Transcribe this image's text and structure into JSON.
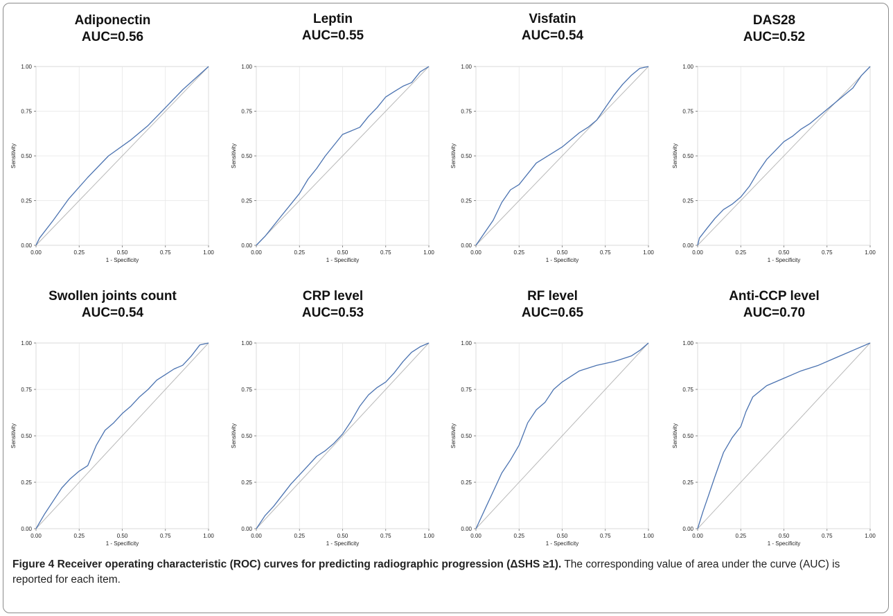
{
  "caption": {
    "label": "Figure 4",
    "title": "Receiver operating characteristic (ROC) curves for predicting radiographic progression (ΔSHS ≥1).",
    "text": "The corresponding value of area under the curve (AUC) is reported for each item."
  },
  "colors": {
    "curve": "#4a72b0",
    "diagonal": "#b8b8b8",
    "grid": "#e6e6e6",
    "frame": "#b0b0b0"
  },
  "chart_data": [
    {
      "type": "line",
      "title": "Adiponectin",
      "subtitle": "AUC=0.56",
      "xlabel": "1 - Specificity",
      "ylabel": "Sensitivity",
      "xlim": [
        0,
        1
      ],
      "ylim": [
        0,
        1
      ],
      "xticks": [
        "0.00",
        "0.25",
        "0.50",
        "0.75",
        "1.00"
      ],
      "yticks": [
        "0.00",
        "0.25",
        "0.50",
        "0.75",
        "1.00"
      ],
      "x": [
        0,
        0.02,
        0.1,
        0.19,
        0.3,
        0.42,
        0.55,
        0.65,
        0.75,
        0.85,
        1.0
      ],
      "y": [
        0,
        0.04,
        0.14,
        0.26,
        0.38,
        0.5,
        0.59,
        0.67,
        0.77,
        0.87,
        1.0
      ]
    },
    {
      "type": "line",
      "title": "Leptin",
      "subtitle": "AUC=0.55",
      "xlabel": "1 - Specificity",
      "ylabel": "Sensitivity",
      "xlim": [
        0,
        1
      ],
      "ylim": [
        0,
        1
      ],
      "xticks": [
        "0.00",
        "0.25",
        "0.50",
        "0.75",
        "1.00"
      ],
      "yticks": [
        "0.00",
        "0.25",
        "0.50",
        "0.75",
        "1.00"
      ],
      "x": [
        0,
        0.05,
        0.1,
        0.15,
        0.2,
        0.25,
        0.3,
        0.35,
        0.4,
        0.45,
        0.5,
        0.55,
        0.6,
        0.65,
        0.7,
        0.75,
        0.8,
        0.85,
        0.9,
        0.95,
        1.0
      ],
      "y": [
        0,
        0.05,
        0.11,
        0.17,
        0.23,
        0.29,
        0.37,
        0.43,
        0.5,
        0.56,
        0.62,
        0.64,
        0.66,
        0.72,
        0.77,
        0.83,
        0.86,
        0.89,
        0.91,
        0.97,
        1.0
      ]
    },
    {
      "type": "line",
      "title": "Visfatin",
      "subtitle": "AUC=0.54",
      "xlabel": "1 - Specificity",
      "ylabel": "Sensitivity",
      "xlim": [
        0,
        1
      ],
      "ylim": [
        0,
        1
      ],
      "xticks": [
        "0.00",
        "0.25",
        "0.50",
        "0.75",
        "1.00"
      ],
      "yticks": [
        "0.00",
        "0.25",
        "0.50",
        "0.75",
        "1.00"
      ],
      "x": [
        0,
        0.05,
        0.1,
        0.15,
        0.2,
        0.25,
        0.3,
        0.35,
        0.4,
        0.45,
        0.5,
        0.55,
        0.6,
        0.65,
        0.7,
        0.75,
        0.8,
        0.85,
        0.9,
        0.95,
        1.0
      ],
      "y": [
        0,
        0.07,
        0.14,
        0.24,
        0.31,
        0.34,
        0.4,
        0.46,
        0.49,
        0.52,
        0.55,
        0.59,
        0.63,
        0.66,
        0.7,
        0.77,
        0.84,
        0.9,
        0.95,
        0.99,
        1.0
      ]
    },
    {
      "type": "line",
      "title": "DAS28",
      "subtitle": "AUC=0.52",
      "xlabel": "1 - Specificity",
      "ylabel": "Sensitivity",
      "xlim": [
        0,
        1
      ],
      "ylim": [
        0,
        1
      ],
      "xticks": [
        "0.00",
        "0.25",
        "0.50",
        "0.75",
        "1.00"
      ],
      "yticks": [
        "0.00",
        "0.25",
        "0.50",
        "0.75",
        "1.00"
      ],
      "x": [
        0,
        0.01,
        0.05,
        0.1,
        0.15,
        0.2,
        0.25,
        0.3,
        0.35,
        0.4,
        0.45,
        0.5,
        0.55,
        0.6,
        0.65,
        0.7,
        0.75,
        0.8,
        0.85,
        0.9,
        0.95,
        1.0
      ],
      "y": [
        0,
        0.04,
        0.09,
        0.15,
        0.2,
        0.23,
        0.27,
        0.33,
        0.41,
        0.48,
        0.53,
        0.58,
        0.61,
        0.65,
        0.68,
        0.72,
        0.76,
        0.8,
        0.84,
        0.88,
        0.95,
        1.0
      ]
    },
    {
      "type": "line",
      "title": "Swollen joints count",
      "subtitle": "AUC=0.54",
      "xlabel": "1 - Specificity",
      "ylabel": "Sensitivity",
      "xlim": [
        0,
        1
      ],
      "ylim": [
        0,
        1
      ],
      "xticks": [
        "0.00",
        "0.25",
        "0.50",
        "0.75",
        "1.00"
      ],
      "yticks": [
        "0.00",
        "0.25",
        "0.50",
        "0.75",
        "1.00"
      ],
      "x": [
        0,
        0.05,
        0.1,
        0.15,
        0.2,
        0.25,
        0.3,
        0.35,
        0.4,
        0.45,
        0.5,
        0.55,
        0.6,
        0.65,
        0.7,
        0.75,
        0.8,
        0.85,
        0.9,
        0.95,
        1.0
      ],
      "y": [
        0,
        0.08,
        0.15,
        0.22,
        0.27,
        0.31,
        0.34,
        0.45,
        0.53,
        0.57,
        0.62,
        0.66,
        0.71,
        0.75,
        0.8,
        0.83,
        0.86,
        0.88,
        0.93,
        0.99,
        1.0
      ]
    },
    {
      "type": "line",
      "title": "CRP level",
      "subtitle": "AUC=0.53",
      "xlabel": "1 - Specificity",
      "ylabel": "Sensitivity",
      "xlim": [
        0,
        1
      ],
      "ylim": [
        0,
        1
      ],
      "xticks": [
        "0.00",
        "0.25",
        "0.50",
        "0.75",
        "1.00"
      ],
      "yticks": [
        "0.00",
        "0.25",
        "0.50",
        "0.75",
        "1.00"
      ],
      "x": [
        0,
        0.05,
        0.1,
        0.15,
        0.2,
        0.25,
        0.3,
        0.35,
        0.4,
        0.45,
        0.5,
        0.55,
        0.6,
        0.65,
        0.7,
        0.75,
        0.8,
        0.85,
        0.9,
        0.95,
        1.0
      ],
      "y": [
        0,
        0.07,
        0.12,
        0.18,
        0.24,
        0.29,
        0.34,
        0.39,
        0.42,
        0.46,
        0.51,
        0.58,
        0.66,
        0.72,
        0.76,
        0.79,
        0.84,
        0.9,
        0.95,
        0.98,
        1.0
      ]
    },
    {
      "type": "line",
      "title": "RF level",
      "subtitle": "AUC=0.65",
      "xlabel": "1 - Specificity",
      "ylabel": "Sensitivity",
      "xlim": [
        0,
        1
      ],
      "ylim": [
        0,
        1
      ],
      "xticks": [
        "0.00",
        "0.25",
        "0.50",
        "0.75",
        "1.00"
      ],
      "yticks": [
        "0.00",
        "0.25",
        "0.50",
        "0.75",
        "1.00"
      ],
      "x": [
        0,
        0.03,
        0.06,
        0.1,
        0.15,
        0.2,
        0.25,
        0.3,
        0.35,
        0.4,
        0.45,
        0.5,
        0.55,
        0.6,
        0.7,
        0.8,
        0.9,
        0.95,
        1.0
      ],
      "y": [
        0,
        0.06,
        0.12,
        0.2,
        0.3,
        0.37,
        0.45,
        0.57,
        0.64,
        0.68,
        0.75,
        0.79,
        0.82,
        0.85,
        0.88,
        0.9,
        0.93,
        0.96,
        1.0
      ]
    },
    {
      "type": "line",
      "title": "Anti-CCP level",
      "subtitle": "AUC=0.70",
      "xlabel": "1 - Specificity",
      "ylabel": "Sensitivity",
      "xlim": [
        0,
        1
      ],
      "ylim": [
        0,
        1
      ],
      "xticks": [
        "0.00",
        "0.25",
        "0.50",
        "0.75",
        "1.00"
      ],
      "yticks": [
        "0.00",
        "0.25",
        "0.50",
        "0.75",
        "1.00"
      ],
      "x": [
        0,
        0.03,
        0.06,
        0.1,
        0.15,
        0.2,
        0.25,
        0.28,
        0.32,
        0.36,
        0.4,
        0.5,
        0.6,
        0.7,
        0.8,
        0.9,
        1.0
      ],
      "y": [
        0,
        0.09,
        0.17,
        0.28,
        0.41,
        0.49,
        0.55,
        0.63,
        0.71,
        0.74,
        0.77,
        0.81,
        0.85,
        0.88,
        0.92,
        0.96,
        1.0
      ]
    }
  ]
}
